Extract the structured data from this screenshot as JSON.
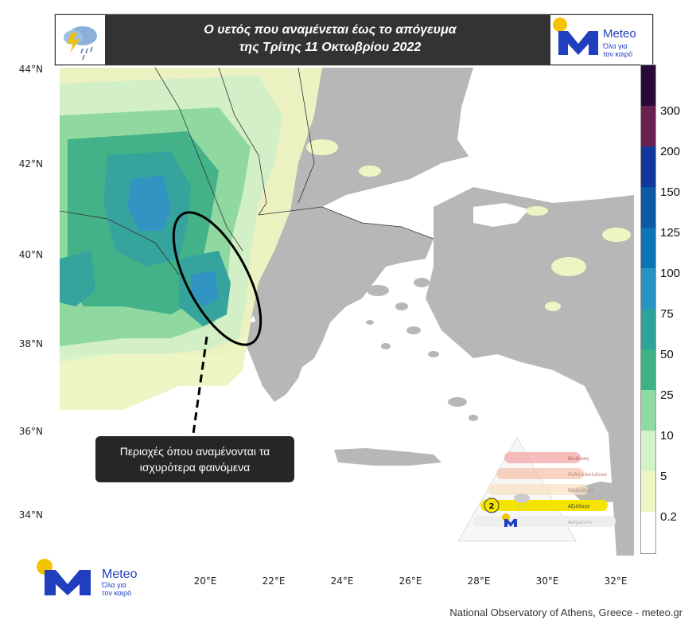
{
  "header": {
    "title_line1": "Ο υετός που αναμένεται έως το απόγευμα",
    "title_line2": "της Τρίτης 11 Οκτωβρίου 2022",
    "weather_icon": "rain-cloud-lightning-icon"
  },
  "brand": {
    "name": "Meteo",
    "slogan_line1": "Όλα για",
    "slogan_line2": "τον καιρό",
    "color": "#1f3fbf",
    "sun_color": "#f5c400"
  },
  "map": {
    "lat_labels": [
      "44°N",
      "42°N",
      "40°N",
      "38°N",
      "36°N",
      "34°N"
    ],
    "lon_labels": [
      "20°E",
      "22°E",
      "24°E",
      "26°E",
      "28°E",
      "30°E",
      "32°E"
    ],
    "land_color": "#b7b7b7",
    "sea_color": "#ffffff"
  },
  "colorbar": {
    "labels": [
      "300",
      "200",
      "150",
      "125",
      "100",
      "75",
      "50",
      "25",
      "10",
      "5",
      "0.2"
    ],
    "colors": [
      "#2a0a3a",
      "#6b2150",
      "#12379a",
      "#0c5aa6",
      "#0f74b5",
      "#2a93c4",
      "#2fa39b",
      "#3db286",
      "#8ddba0",
      "#d4f2c8",
      "#eef5c2",
      "#ffffff"
    ]
  },
  "callout": {
    "line1": "Περιοχές όπου αναμένονται τα",
    "line2": "ισχυρότερα φαινόμενα"
  },
  "hazard_badge": {
    "level": "2",
    "level_labels": [
      "Κίνδυνος",
      "Πολύ επικίνδυνο",
      "Επικίνδυνο",
      "Αξιόλογο",
      "Ασήμαντο"
    ],
    "colors": [
      "#f3a3a3",
      "#f6c1a6",
      "#f8e0c0",
      "#f5e400",
      "#eeeeee"
    ]
  },
  "footer": {
    "credit": "National Observatory of Athens, Greece - meteo.gr"
  }
}
